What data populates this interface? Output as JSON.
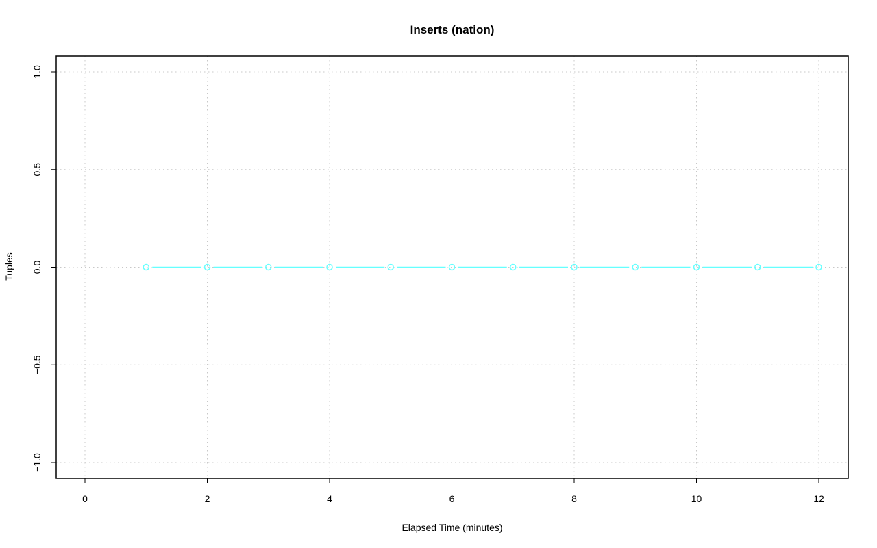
{
  "chart_data": {
    "type": "line",
    "title": "Inserts (nation)",
    "xlabel": "Elapsed Time (minutes)",
    "ylabel": "Tuples",
    "xlim": [
      -0.5,
      12.5
    ],
    "ylim": [
      -1.08,
      1.08
    ],
    "x_ticks": [
      0,
      2,
      4,
      6,
      8,
      10,
      12
    ],
    "x_tick_labels": [
      "0",
      "2",
      "4",
      "6",
      "8",
      "10",
      "12"
    ],
    "y_ticks": [
      -1.0,
      -0.5,
      0.0,
      0.5,
      1.0
    ],
    "y_tick_labels": [
      "−1.0",
      "−0.5",
      "0.0",
      "0.5",
      "1.0"
    ],
    "grid": true,
    "series": [
      {
        "color": "#66ffff",
        "marker": "open-circle",
        "x": [
          1,
          2,
          3,
          4,
          5,
          6,
          7,
          8,
          9,
          10,
          11,
          12
        ],
        "values": [
          0,
          0,
          0,
          0,
          0,
          0,
          0,
          0,
          0,
          0,
          0,
          0
        ]
      }
    ]
  }
}
